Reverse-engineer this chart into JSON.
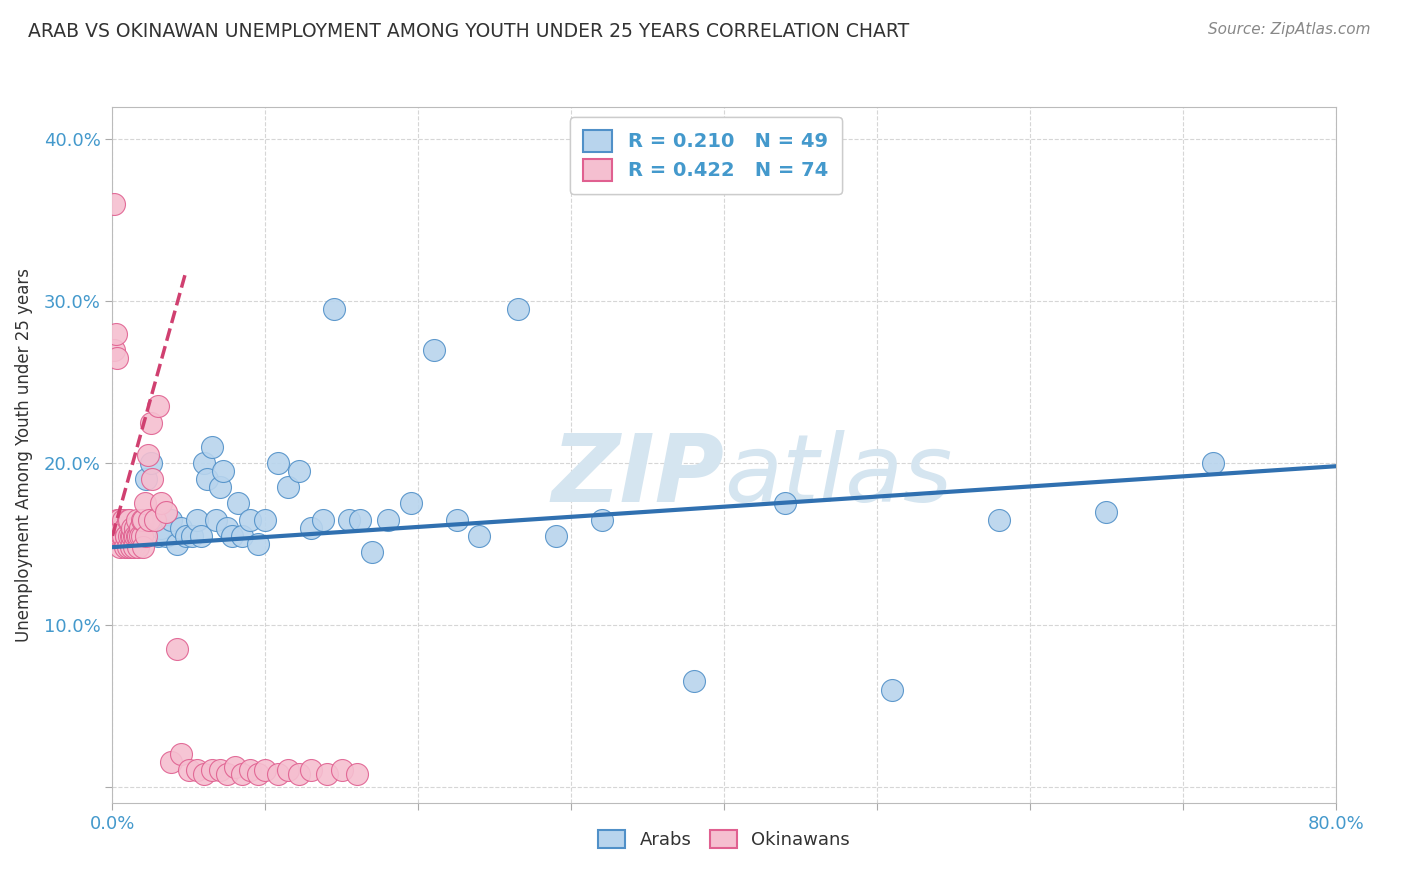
{
  "title": "ARAB VS OKINAWAN UNEMPLOYMENT AMONG YOUTH UNDER 25 YEARS CORRELATION CHART",
  "source": "Source: ZipAtlas.com",
  "ylabel_text": "Unemployment Among Youth under 25 years",
  "xlim": [
    0.0,
    0.8
  ],
  "ylim": [
    -0.01,
    0.42
  ],
  "xticks": [
    0.0,
    0.1,
    0.2,
    0.3,
    0.4,
    0.5,
    0.6,
    0.7,
    0.8
  ],
  "xticklabels": [
    "0.0%",
    "",
    "",
    "",
    "",
    "",
    "",
    "",
    "80.0%"
  ],
  "yticks": [
    0.0,
    0.1,
    0.2,
    0.3,
    0.4
  ],
  "yticklabels": [
    "",
    "10.0%",
    "20.0%",
    "30.0%",
    "40.0%"
  ],
  "arab_R": 0.21,
  "arab_N": 49,
  "okinawan_R": 0.422,
  "okinawan_N": 74,
  "arab_color": "#b8d4ed",
  "arab_line_color": "#3070b0",
  "arab_edge_color": "#5090c8",
  "okinawan_color": "#f5bfd0",
  "okinawan_line_color": "#d04070",
  "okinawan_edge_color": "#e06090",
  "arab_x": [
    0.018,
    0.022,
    0.025,
    0.03,
    0.032,
    0.035,
    0.038,
    0.042,
    0.045,
    0.048,
    0.052,
    0.055,
    0.058,
    0.06,
    0.062,
    0.065,
    0.068,
    0.07,
    0.072,
    0.075,
    0.078,
    0.082,
    0.085,
    0.09,
    0.095,
    0.1,
    0.108,
    0.115,
    0.122,
    0.13,
    0.138,
    0.145,
    0.155,
    0.162,
    0.17,
    0.18,
    0.195,
    0.21,
    0.225,
    0.24,
    0.265,
    0.29,
    0.32,
    0.38,
    0.44,
    0.51,
    0.58,
    0.65,
    0.72
  ],
  "arab_y": [
    0.155,
    0.19,
    0.2,
    0.155,
    0.16,
    0.155,
    0.165,
    0.15,
    0.16,
    0.155,
    0.155,
    0.165,
    0.155,
    0.2,
    0.19,
    0.21,
    0.165,
    0.185,
    0.195,
    0.16,
    0.155,
    0.175,
    0.155,
    0.165,
    0.15,
    0.165,
    0.2,
    0.185,
    0.195,
    0.16,
    0.165,
    0.295,
    0.165,
    0.165,
    0.145,
    0.165,
    0.175,
    0.27,
    0.165,
    0.155,
    0.295,
    0.155,
    0.165,
    0.065,
    0.175,
    0.06,
    0.165,
    0.17,
    0.2
  ],
  "okinawan_x": [
    0.001,
    0.002,
    0.002,
    0.003,
    0.003,
    0.004,
    0.004,
    0.005,
    0.005,
    0.006,
    0.006,
    0.007,
    0.007,
    0.008,
    0.008,
    0.009,
    0.009,
    0.01,
    0.01,
    0.011,
    0.011,
    0.012,
    0.012,
    0.013,
    0.013,
    0.014,
    0.014,
    0.015,
    0.015,
    0.016,
    0.016,
    0.017,
    0.017,
    0.018,
    0.018,
    0.019,
    0.019,
    0.02,
    0.02,
    0.021,
    0.022,
    0.023,
    0.024,
    0.025,
    0.026,
    0.028,
    0.03,
    0.032,
    0.035,
    0.038,
    0.042,
    0.045,
    0.05,
    0.055,
    0.06,
    0.065,
    0.07,
    0.075,
    0.08,
    0.085,
    0.09,
    0.095,
    0.1,
    0.108,
    0.115,
    0.122,
    0.13,
    0.14,
    0.15,
    0.16,
    0.001,
    0.001,
    0.002,
    0.003
  ],
  "okinawan_y": [
    0.155,
    0.16,
    0.155,
    0.165,
    0.155,
    0.155,
    0.165,
    0.148,
    0.155,
    0.16,
    0.155,
    0.155,
    0.165,
    0.148,
    0.16,
    0.155,
    0.155,
    0.165,
    0.148,
    0.155,
    0.165,
    0.155,
    0.148,
    0.155,
    0.16,
    0.155,
    0.148,
    0.16,
    0.155,
    0.155,
    0.165,
    0.148,
    0.155,
    0.16,
    0.155,
    0.155,
    0.165,
    0.148,
    0.165,
    0.175,
    0.155,
    0.205,
    0.165,
    0.225,
    0.19,
    0.165,
    0.235,
    0.175,
    0.17,
    0.015,
    0.085,
    0.02,
    0.01,
    0.01,
    0.008,
    0.01,
    0.01,
    0.008,
    0.012,
    0.008,
    0.01,
    0.008,
    0.01,
    0.008,
    0.01,
    0.008,
    0.01,
    0.008,
    0.01,
    0.008,
    0.36,
    0.27,
    0.28,
    0.265
  ],
  "okin_trend_x": [
    0.0,
    0.05
  ],
  "okin_trend_y_start": 0.155,
  "okin_trend_slope": 3.4,
  "arab_trend_x": [
    0.0,
    0.8
  ],
  "arab_trend_y": [
    0.148,
    0.198
  ],
  "background_color": "#ffffff",
  "grid_color": "#cccccc",
  "title_color": "#333333",
  "axis_label_color": "#4499cc",
  "watermark_color": "#d5e5f0"
}
